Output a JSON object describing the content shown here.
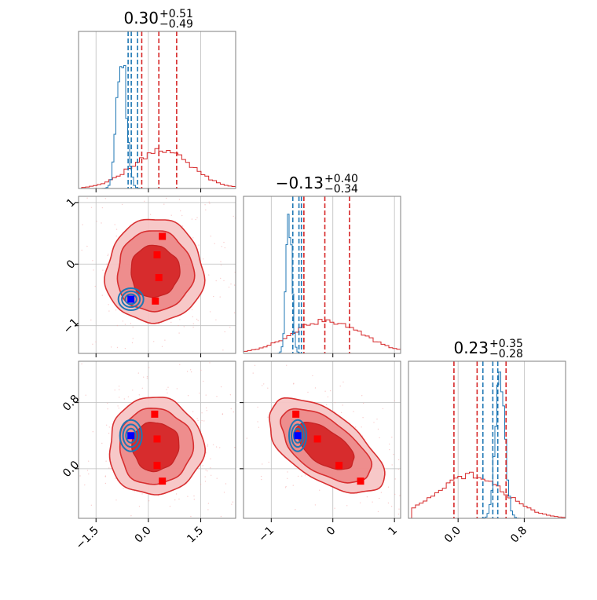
{
  "chart_data": {
    "type": "corner",
    "colors": {
      "red": "#d62728",
      "red_light": "#f08080",
      "red_mid": "#ee7777",
      "blue": "#1f77b4",
      "blue_marker": "#0000ff",
      "marker": "#ff0000"
    },
    "titles": [
      {
        "value": "0.30",
        "plus": "+0.51",
        "minus": "−0.49"
      },
      {
        "value": "−0.13",
        "plus": "+0.40",
        "minus": "−0.34"
      },
      {
        "value": "0.23",
        "plus": "+0.35",
        "minus": "−0.28"
      }
    ],
    "ticks": {
      "p0": {
        "values": [
          -1.5,
          0.0,
          1.5
        ],
        "labels": [
          "−1.5",
          "0.0",
          "1.5"
        ],
        "range": [
          -2.0,
          2.5
        ]
      },
      "p1": {
        "values": [
          -1,
          0,
          1
        ],
        "labels": [
          "−1",
          "0",
          "1"
        ],
        "range": [
          -1.45,
          1.1
        ]
      },
      "p2": {
        "values": [
          0.0,
          0.8
        ],
        "labels": [
          "0.0",
          "0.8"
        ],
        "range": [
          -0.6,
          1.3
        ]
      }
    },
    "diag_quantiles": {
      "red": [
        [
          -0.19,
          0.3,
          0.81
        ],
        [
          -0.47,
          -0.13,
          0.27
        ],
        [
          -0.05,
          0.23,
          0.58
        ]
      ],
      "blue": [
        [
          -0.58,
          -0.49,
          -0.31
        ],
        [
          -0.65,
          -0.55,
          -0.51
        ],
        [
          0.3,
          0.42,
          0.48
        ]
      ]
    },
    "red_markers": {
      "p0_p1": [
        [
          0.4,
          0.45
        ],
        [
          0.25,
          0.15
        ],
        [
          0.3,
          -0.22
        ],
        [
          0.2,
          -0.6
        ]
      ],
      "p0_p2": [
        [
          0.18,
          0.66
        ],
        [
          0.25,
          0.36
        ],
        [
          0.25,
          0.04
        ],
        [
          0.4,
          -0.15
        ]
      ],
      "p1_p2": [
        [
          -0.6,
          0.66
        ],
        [
          -0.25,
          0.36
        ],
        [
          0.1,
          0.04
        ],
        [
          0.45,
          -0.15
        ]
      ]
    },
    "blue_marker": {
      "p0": -0.5,
      "p1": -0.57,
      "p2": 0.4
    }
  }
}
